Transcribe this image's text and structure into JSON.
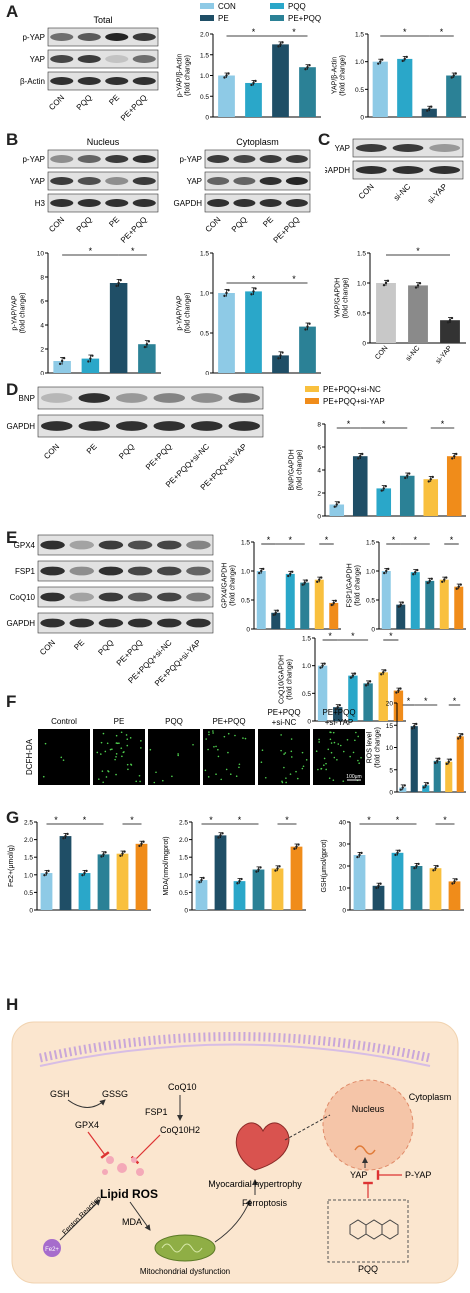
{
  "panels": {
    "A": {
      "label": "A",
      "blot_title": "Total",
      "rows": [
        "p-YAP",
        "YAP",
        "β-Actin"
      ],
      "groups": [
        "CON",
        "PQQ",
        "PE",
        "PE+PQQ"
      ],
      "legend": [
        "CON",
        "PQQ",
        "PE",
        "PE+PQQ"
      ]
    },
    "B": {
      "label": "B",
      "nucleus_title": "Nucleus",
      "cyto_title": "Cytoplasm",
      "nucleus_rows": [
        "p-YAP",
        "YAP",
        "H3"
      ],
      "cyto_rows": [
        "p-YAP",
        "YAP",
        "GAPDH"
      ],
      "groups": [
        "CON",
        "PQQ",
        "PE",
        "PE+PQQ"
      ]
    },
    "C": {
      "label": "C",
      "rows": [
        "YAP",
        "GAPDH"
      ],
      "groups": [
        "CON",
        "si-NC",
        "si-YAP"
      ]
    },
    "D": {
      "label": "D",
      "rows": [
        "BNP",
        "GAPDH"
      ],
      "groups": [
        "CON",
        "PE",
        "PQQ",
        "PE+PQQ",
        "PE+PQQ+si-NC",
        "PE+PQQ+si-YAP"
      ],
      "legend": [
        "PE+PQQ+si-NC",
        "PE+PQQ+si-YAP"
      ]
    },
    "E": {
      "label": "E",
      "rows": [
        "GPX4",
        "FSP1",
        "CoQ10",
        "GAPDH"
      ],
      "groups": [
        "CON",
        "PE",
        "PQQ",
        "PE+PQQ",
        "PE+PQQ+si-NC",
        "PE+PQQ+si-YAP"
      ]
    },
    "F": {
      "label": "F",
      "stain": "DCFH-DA",
      "columns": [
        "Control",
        "PE",
        "PQQ",
        "PE+PQQ",
        "PE+PQQ\n+si-NC",
        "PE+PQQ\n+si-YAP"
      ],
      "col_line1": [
        "Control",
        "PE",
        "PQQ",
        "PE+PQQ",
        "PE+PQQ",
        "PE+PQQ"
      ],
      "col_line2": [
        "",
        "",
        "",
        "",
        "+si-NC",
        "+si-YAP"
      ],
      "scale_bar": "100μm"
    },
    "G": {
      "label": "G"
    },
    "H": {
      "label": "H",
      "labels": {
        "gsh": "GSH",
        "gssg": "GSSG",
        "gpx4": "GPX4",
        "fsp1": "FSP1",
        "coq10": "CoQ10",
        "coq10h2": "CoQ10H2",
        "lipid_ros": "Lipid ROS",
        "fenton": "Fenton Reaction",
        "fe": "Fe2+",
        "mda": "MDA",
        "mito": "Mitochondrial dysfunction",
        "ferroptosis": "Ferroptosis",
        "hypertrophy": "Myocardial hypertrophy",
        "nucleus": "Nucleus",
        "cytoplasm": "Cytoplasm",
        "yap": "YAP",
        "pyap": "P-YAP",
        "pqq": "PQQ"
      }
    }
  },
  "colors": {
    "CON": "#8ecae6",
    "PQQ": "#2aa7c9",
    "PE": "#1f4e66",
    "PEPQQ": "#2b8196",
    "siNC": "#f9c03e",
    "siYAP": "#f08c1a",
    "siCON": "#c8c8c8",
    "siNCgray": "#8a8a8a",
    "siYAPgray": "#333333"
  },
  "chart_data": [
    {
      "id": "A1",
      "type": "bar",
      "categories": [
        "CON",
        "PQQ",
        "PE",
        "PE+PQQ"
      ],
      "values": [
        1.0,
        0.82,
        1.75,
        1.2
      ],
      "ylabel": "p-YAP/β-Actin (fold change)",
      "ylim": [
        0,
        2.0
      ],
      "yticks": [
        0,
        0.5,
        1.0,
        1.5,
        2.0
      ]
    },
    {
      "id": "A2",
      "type": "bar",
      "categories": [
        "CON",
        "PQQ",
        "PE",
        "PE+PQQ"
      ],
      "values": [
        1.0,
        1.05,
        0.15,
        0.75
      ],
      "ylabel": "YAP/β-Actin (fold change)",
      "ylim": [
        0,
        1.5
      ],
      "yticks": [
        0,
        0.5,
        1.0,
        1.5
      ]
    },
    {
      "id": "B1",
      "type": "bar",
      "categories": [
        "CON",
        "PQQ",
        "PE",
        "PE+PQQ"
      ],
      "values": [
        1.0,
        1.2,
        7.5,
        2.4
      ],
      "ylabel": "p-YAP/YAP (fold change)",
      "ylim": [
        0,
        10
      ],
      "yticks": [
        0,
        2,
        4,
        6,
        8,
        10
      ]
    },
    {
      "id": "B2",
      "type": "bar",
      "categories": [
        "CON",
        "PQQ",
        "PE",
        "PE+PQQ"
      ],
      "values": [
        1.0,
        1.02,
        0.22,
        0.58
      ],
      "ylabel": "p-YAP/YAP (fold change)",
      "ylim": [
        0,
        1.5
      ],
      "yticks": [
        0,
        0.5,
        1.0,
        1.5
      ]
    },
    {
      "id": "C1",
      "type": "bar",
      "categories": [
        "CON",
        "si-NC",
        "si-YAP"
      ],
      "values": [
        1.0,
        0.96,
        0.38
      ],
      "ylabel": "YAP/GAPDH (fold change)",
      "ylim": [
        0,
        1.5
      ],
      "yticks": [
        0,
        0.5,
        1.0,
        1.5
      ]
    },
    {
      "id": "D1",
      "type": "bar",
      "categories": [
        "CON",
        "PE",
        "PQQ",
        "PE+PQQ",
        "PE+PQQ+si-NC",
        "PE+PQQ+si-YAP"
      ],
      "values": [
        1.0,
        5.2,
        2.4,
        3.5,
        3.2,
        5.2
      ],
      "ylabel": "BNP/GAPDH (fold change)",
      "ylim": [
        0,
        8
      ],
      "yticks": [
        0,
        2,
        4,
        6,
        8
      ]
    },
    {
      "id": "E1",
      "type": "bar",
      "categories": [
        "CON",
        "PE",
        "PQQ",
        "PE+PQQ",
        "PE+PQQ+si-NC",
        "PE+PQQ+si-YAP"
      ],
      "values": [
        1.0,
        0.28,
        0.95,
        0.8,
        0.85,
        0.45
      ],
      "ylabel": "GPX4/GAPDH (fold change)",
      "ylim": [
        0,
        1.5
      ],
      "yticks": [
        0,
        0.5,
        1.0,
        1.5
      ]
    },
    {
      "id": "E2",
      "type": "bar",
      "categories": [
        "CON",
        "PE",
        "PQQ",
        "PE+PQQ",
        "PE+PQQ+si-NC",
        "PE+PQQ+si-YAP"
      ],
      "values": [
        1.0,
        0.42,
        0.98,
        0.83,
        0.85,
        0.73
      ],
      "ylabel": "FSP1/GAPDH (fold change)",
      "ylim": [
        0,
        1.5
      ],
      "yticks": [
        0,
        0.5,
        1.0,
        1.5
      ]
    },
    {
      "id": "E3",
      "type": "bar",
      "categories": [
        "CON",
        "PE",
        "PQQ",
        "PE+PQQ",
        "PE+PQQ+si-NC",
        "PE+PQQ+si-YAP"
      ],
      "values": [
        1.0,
        0.25,
        0.82,
        0.68,
        0.88,
        0.55
      ],
      "ylabel": "CoQ10/GAPDH (fold change)",
      "ylim": [
        0,
        1.5
      ],
      "yticks": [
        0,
        0.5,
        1.0,
        1.5
      ]
    },
    {
      "id": "F1",
      "type": "bar",
      "categories": [
        "CON",
        "PE",
        "PQQ",
        "PE+PQQ",
        "PE+PQQ+si-NC",
        "PE+PQQ+si-YAP"
      ],
      "values": [
        1.0,
        14.8,
        1.5,
        7.0,
        6.8,
        12.5
      ],
      "ylabel": "ROS level (fold change)",
      "ylim": [
        0,
        20
      ],
      "yticks": [
        0,
        5,
        10,
        15,
        20
      ]
    },
    {
      "id": "G1",
      "type": "bar",
      "categories": [
        "CON",
        "PE",
        "PQQ",
        "PE+PQQ",
        "PE+PQQ+si-NC",
        "PE+PQQ+si-YAP"
      ],
      "values": [
        1.05,
        2.1,
        1.05,
        1.58,
        1.6,
        1.88
      ],
      "ylabel": "Fe2+(μmol/g)",
      "ylim": [
        0,
        2.5
      ],
      "yticks": [
        0,
        0.5,
        1.0,
        1.5,
        2.0,
        2.5
      ]
    },
    {
      "id": "G2",
      "type": "bar",
      "categories": [
        "CON",
        "PE",
        "PQQ",
        "PE+PQQ",
        "PE+PQQ+si-NC",
        "PE+PQQ+si-YAP"
      ],
      "values": [
        0.85,
        2.12,
        0.82,
        1.15,
        1.18,
        1.8
      ],
      "ylabel": "MDA(nmol/mgprot)",
      "ylim": [
        0,
        2.5
      ],
      "yticks": [
        0,
        0.5,
        1.0,
        1.5,
        2.0,
        2.5
      ]
    },
    {
      "id": "G3",
      "type": "bar",
      "categories": [
        "CON",
        "PE",
        "PQQ",
        "PE+PQQ",
        "PE+PQQ+si-NC",
        "PE+PQQ+si-YAP"
      ],
      "values": [
        25,
        11,
        26,
        20,
        19,
        13
      ],
      "ylabel": "GSH(μmol/gprot)",
      "ylim": [
        0,
        40
      ],
      "yticks": [
        0,
        10,
        20,
        30,
        40
      ]
    }
  ]
}
